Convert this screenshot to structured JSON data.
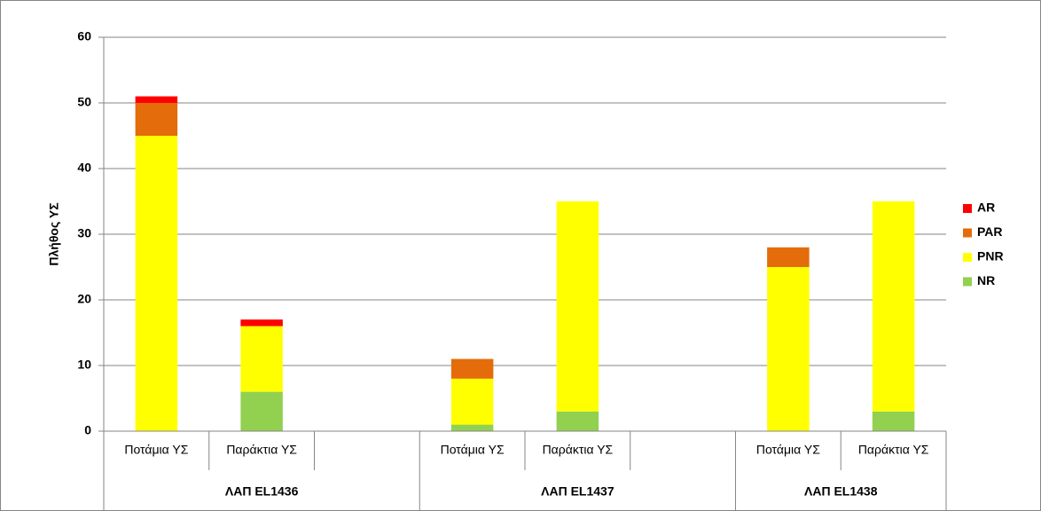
{
  "chart_data": {
    "type": "stacked-bar",
    "y_label": "Πλήθος ΥΣ",
    "categories": [
      "Ποτάμια ΥΣ",
      "Παράκτια ΥΣ",
      null,
      "Ποτάμια ΥΣ",
      "Παράκτια ΥΣ",
      null,
      "Ποτάμια ΥΣ",
      "Παράκτια ΥΣ"
    ],
    "groups": [
      "ΛΑΠ EL1436",
      "ΛΑΠ EL1437",
      "ΛΑΠ EL1438"
    ],
    "series": [
      {
        "name": "NR",
        "color": "#92d050",
        "values": [
          0,
          6,
          null,
          1,
          3,
          null,
          0,
          3
        ]
      },
      {
        "name": "PNR",
        "color": "#ffff00",
        "values": [
          45,
          10,
          null,
          7,
          32,
          null,
          25,
          32
        ]
      },
      {
        "name": "PAR",
        "color": "#e46c0a",
        "values": [
          5,
          0,
          null,
          3,
          0,
          null,
          3,
          0
        ]
      },
      {
        "name": "AR",
        "color": "#ff0000",
        "values": [
          1,
          1,
          null,
          0,
          0,
          null,
          0,
          0
        ]
      }
    ],
    "ylim": [
      0,
      60
    ],
    "yticks": [
      0,
      10,
      20,
      30,
      40,
      50,
      60
    ],
    "grid": true,
    "legend": "right"
  }
}
